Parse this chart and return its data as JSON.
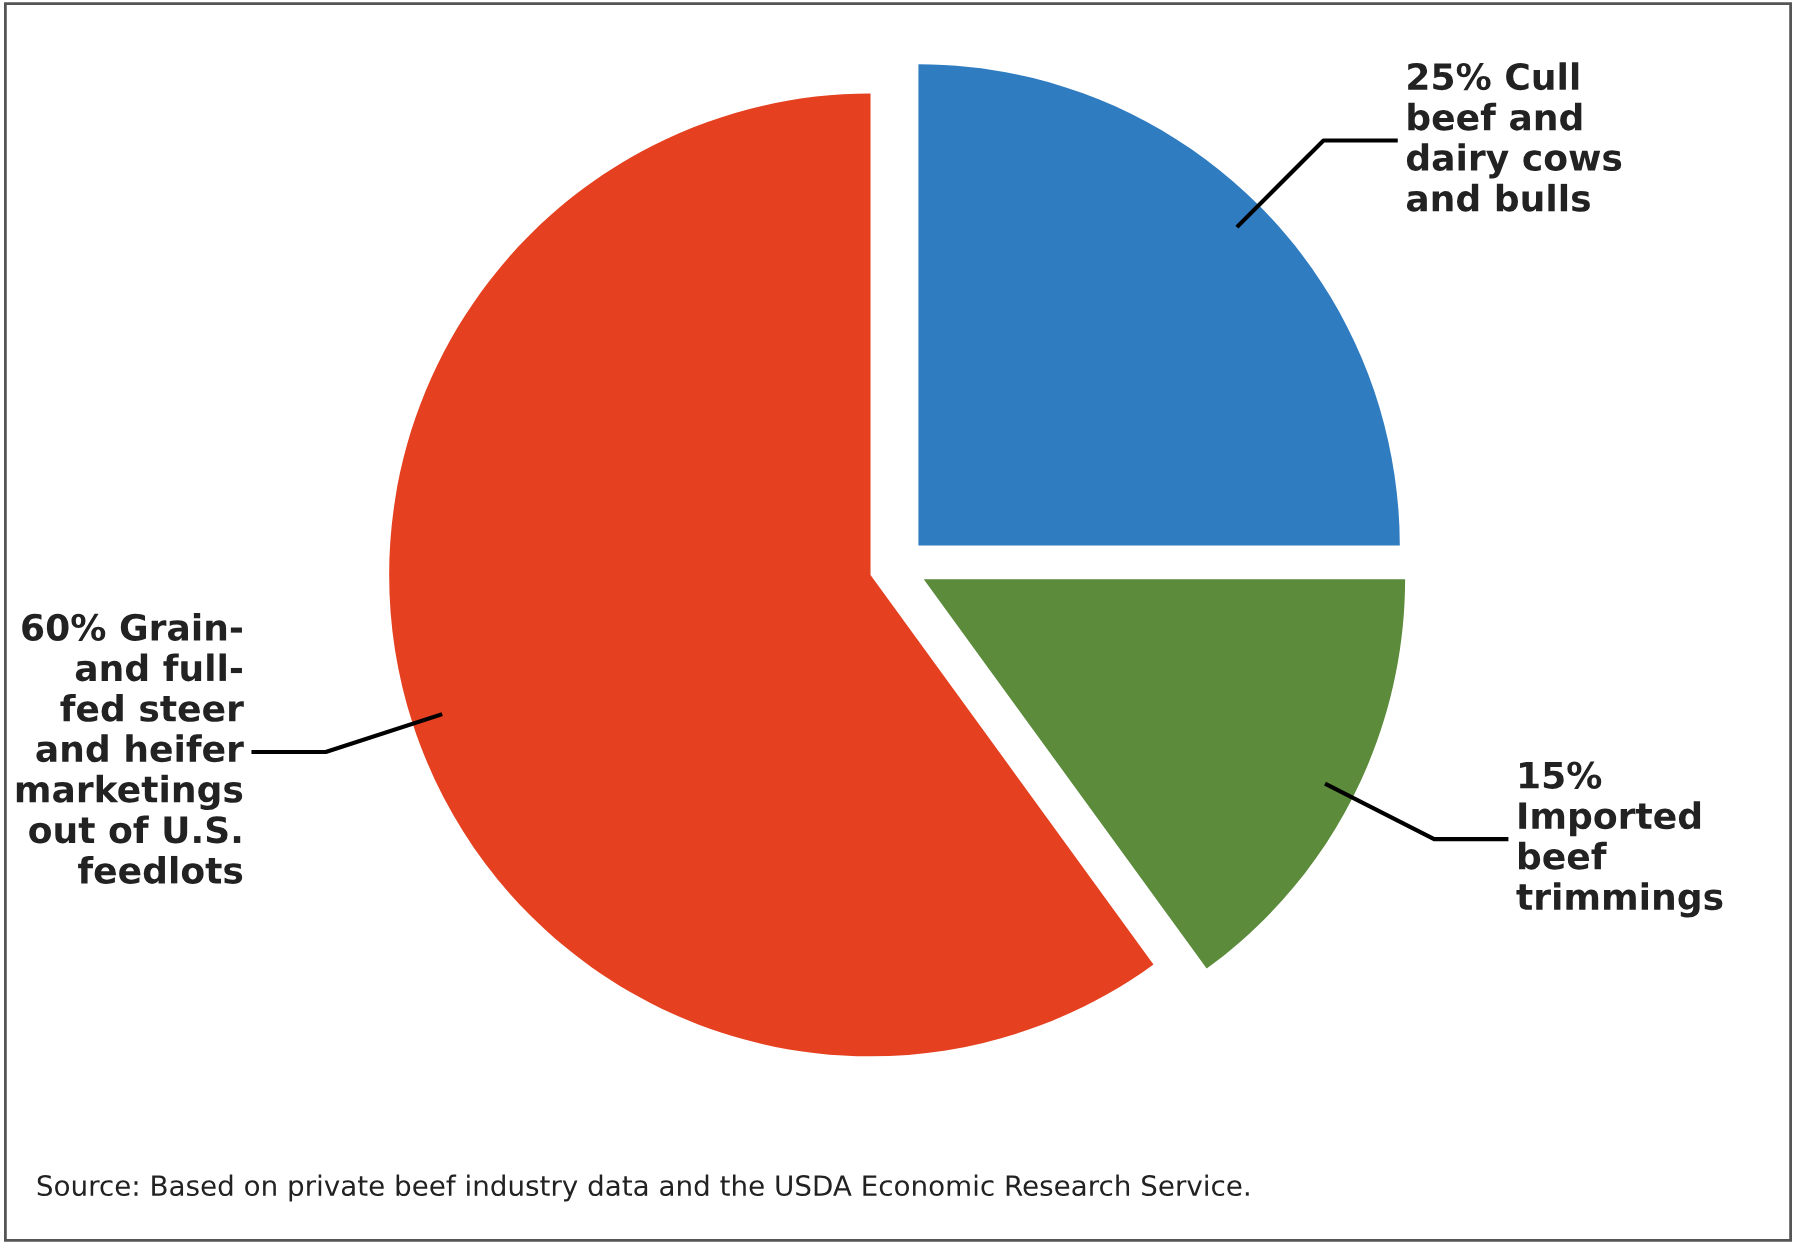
{
  "chart_data": {
    "type": "pie",
    "categories": [
      "25% Cull\nbeef and\ndairy cows\nand bulls",
      "15%\nImported\nbeef\ntrimmings",
      "60% Grain-\nand full-\nfed steer\nand heifer\nmarketings\nout of U.S.\nfeedlots"
    ],
    "values": [
      25,
      15,
      60
    ],
    "colors": [
      "#2f7dc0",
      "#5b8b3b",
      "#e5401f"
    ],
    "annotations": [
      "Source: Based on private beef industry data and the USDA Economic Research Service."
    ]
  }
}
